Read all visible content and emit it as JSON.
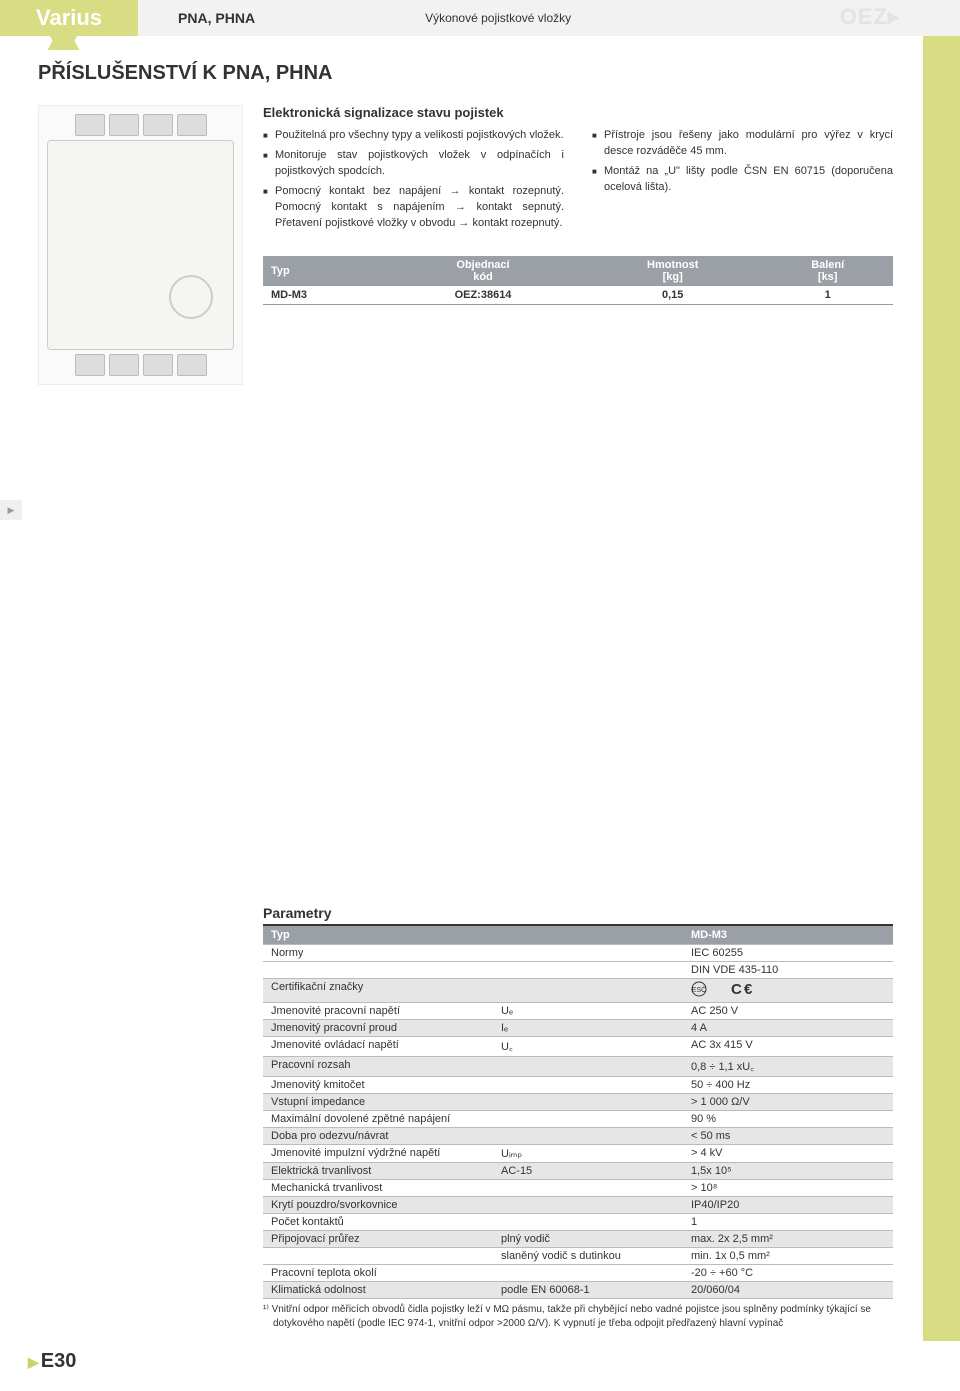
{
  "header": {
    "brand": "Varius",
    "code": "PNA, PHNA",
    "desc": "Výkonové pojistkové vložky",
    "logo": "OEZ▸"
  },
  "section_title": "PŘÍSLUŠENSTVÍ K PNA, PHNA",
  "info_heading": "Elektronická signalizace stavu pojistek",
  "bullets_left": [
    "Použitelná pro všechny typy a velikosti pojistkových vložek.",
    "Monitoruje stav pojistkových vložek v odpínačích i pojistkových spodcích.",
    "Pomocný kontakt bez napájení → kontakt rozepnutý. Pomocný kontakt s napájením → kontakt sepnutý. Přetavení pojistkové vložky v obvodu → kontakt rozepnutý."
  ],
  "bullets_right": [
    "Přístroje jsou řešeny jako modulární pro výřez v krycí desce rozváděče 45 mm.",
    "Montáž na „U\" lišty podle ČSN EN 60715 (doporučena ocelová lišta)."
  ],
  "order_table": {
    "head": [
      "Typ",
      "Objednací kód",
      "Hmotnost [kg]",
      "Balení [ks]"
    ],
    "row": [
      "MD-M3",
      "OEZ:38614",
      "0,15",
      "1"
    ]
  },
  "params_title": "Parametry",
  "params_head": {
    "c1": "Typ",
    "c3": "MD-M3"
  },
  "params_rows": [
    {
      "label": "Normy",
      "sym": "",
      "val": "IEC 60255",
      "alt": false
    },
    {
      "label": "",
      "sym": "",
      "val": "DIN VDE 435-110",
      "alt": false
    },
    {
      "label": "Certifikační značky",
      "sym": "",
      "val": "__CERT__",
      "alt": true
    },
    {
      "label": "Jmenovité pracovní napětí",
      "sym": "Uₑ",
      "val": "AC 250 V",
      "alt": false
    },
    {
      "label": "Jmenovitý pracovní proud",
      "sym": "Iₑ",
      "val": "4 A",
      "alt": true
    },
    {
      "label": "Jmenovité ovládací napětí",
      "sym": "U꜀",
      "val": "AC 3x 415 V",
      "alt": false
    },
    {
      "label": "Pracovní rozsah",
      "sym": "",
      "val": "0,8 ÷ 1,1 xU꜀",
      "alt": true
    },
    {
      "label": "Jmenovitý kmitočet",
      "sym": "",
      "val": "50 ÷ 400 Hz",
      "alt": false
    },
    {
      "label": "Vstupní impedance",
      "sym": "",
      "val": "> 1 000 Ω/V",
      "alt": true
    },
    {
      "label": "Maximální dovolené zpětné napájení",
      "sym": "",
      "val": "90 %",
      "alt": false
    },
    {
      "label": "Doba pro odezvu/návrat",
      "sym": "",
      "val": "< 50 ms",
      "alt": true
    },
    {
      "label": "Jmenovité impulzní výdržné napětí",
      "sym": "Uᵢₘₚ",
      "val": "> 4 kV",
      "alt": false
    },
    {
      "label": "Elektrická trvanlivost",
      "sym": "AC-15",
      "val": "1,5x 10⁵",
      "alt": true
    },
    {
      "label": "Mechanická trvanlivost",
      "sym": "",
      "val": "> 10⁸",
      "alt": false
    },
    {
      "label": "Krytí pouzdro/svorkovnice",
      "sym": "",
      "val": "IP40/IP20",
      "alt": true
    },
    {
      "label": "Počet kontaktů",
      "sym": "",
      "val": "1",
      "alt": false
    },
    {
      "label": "Připojovací průřez",
      "sym": "plný vodič",
      "val": "max. 2x 2,5 mm²",
      "alt": true
    },
    {
      "label": "",
      "sym": "slaněný vodič s dutinkou",
      "val": "min. 1x 0,5 mm²",
      "alt": false
    },
    {
      "label": "Pracovní teplota okolí",
      "sym": "",
      "val": "-20 ÷ +60 °C",
      "alt": false
    },
    {
      "label": "Klimatická odolnost",
      "sym": "podle EN 60068-1",
      "val": "20/060/04",
      "alt": true
    }
  ],
  "footnote": "¹⁾ Vnitřní odpor měřicích obvodů čidla pojistky leží v MΩ pásmu, takže při chybějící nebo vadné pojistce jsou splněny podmínky týkající se dotykového napětí (podle IEC 974-1, vnitřní odpor >2000 Ω/V). K vypnutí je třeba odpojit předřazený hlavní vypínač",
  "page_number": "E30"
}
